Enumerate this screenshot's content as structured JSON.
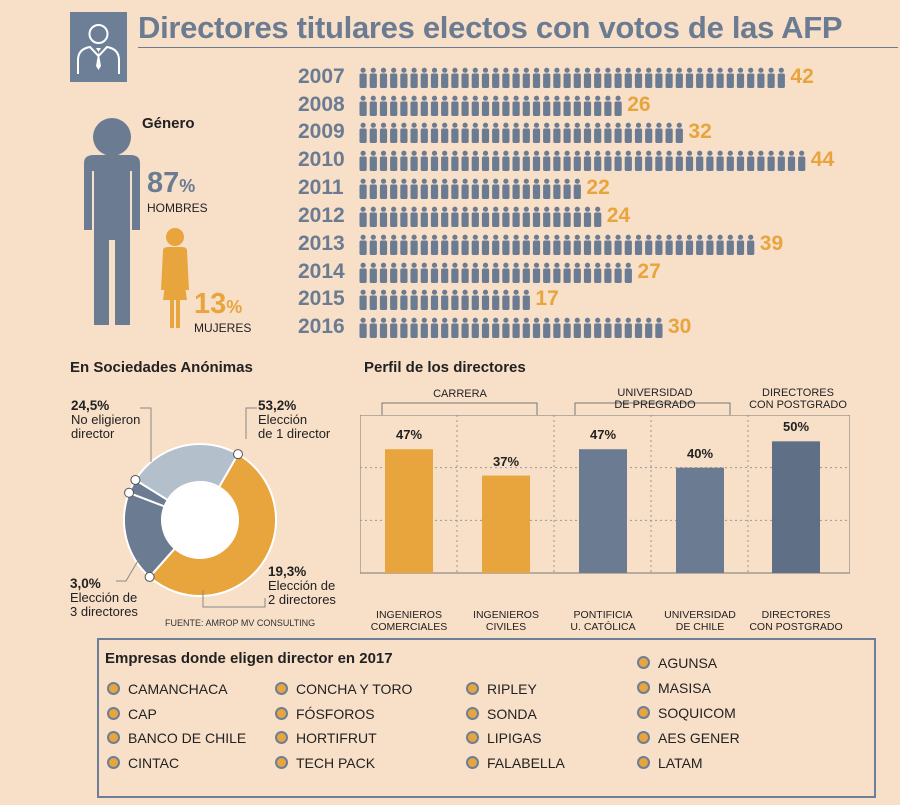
{
  "title": "Directores titulares electos con votos de las AFP",
  "colors": {
    "slate": "#6a7b92",
    "orange": "#e8a43d",
    "light_slate": "#b4bfcc",
    "dark_slate": "#5e6f86",
    "bg": "#f8dfc8"
  },
  "gender": {
    "title": "Género",
    "men_pct": "87",
    "men_label": "HOMBRES",
    "women_pct": "13",
    "women_label": "MUJERES",
    "pct_sign": "%"
  },
  "chart_data": [
    {
      "type": "bar",
      "title": "Directores titulares electos con votos de las AFP",
      "orientation": "horizontal pictogram",
      "categories": [
        "2007",
        "2008",
        "2009",
        "2010",
        "2011",
        "2012",
        "2013",
        "2014",
        "2015",
        "2016"
      ],
      "values": [
        42,
        26,
        32,
        44,
        22,
        24,
        39,
        27,
        17,
        30
      ]
    },
    {
      "type": "pie",
      "title": "En Sociedades Anónimas",
      "slices": [
        {
          "pct": "53,2%",
          "value": 53.2,
          "label_line1": "Elección",
          "label_line2": "de 1 director"
        },
        {
          "pct": "19,3%",
          "value": 19.3,
          "label_line1": "Elección de",
          "label_line2": "2 directores"
        },
        {
          "pct": "3,0%",
          "value": 3.0,
          "label_line1": "Elección de",
          "label_line2": "3 directores"
        },
        {
          "pct": "24,5%",
          "value": 24.5,
          "label_line1": "No eligieron",
          "label_line2": "director"
        }
      ],
      "source": "FUENTE: AMROP MV CONSULTING"
    },
    {
      "type": "bar",
      "title": "Perfil de los directores",
      "groups": [
        {
          "label": "CARRERA"
        },
        {
          "label_line1": "UNIVERSIDAD",
          "label_line2": "DE PREGRADO"
        },
        {
          "label_line1": "DIRECTORES",
          "label_line2": "CON POSTGRADO"
        }
      ],
      "categories": [
        {
          "line1": "INGENIEROS",
          "line2": "COMERCIALES"
        },
        {
          "line1": "INGENIEROS",
          "line2": "CIVILES"
        },
        {
          "line1": "PONTIFICIA",
          "line2": "U. CATÓLICA"
        },
        {
          "line1": "UNIVERSIDAD",
          "line2": "DE CHILE"
        },
        {
          "line1": "DIRECTORES",
          "line2": "CON POSTGRADO"
        }
      ],
      "values": [
        47,
        37,
        47,
        40,
        50
      ],
      "value_labels": [
        "47%",
        "37%",
        "47%",
        "40%",
        "50%"
      ],
      "ylim": [
        0,
        60
      ]
    }
  ],
  "companies": {
    "title": "Empresas donde eligen director en 2017",
    "col1": [
      "CAMANCHACA",
      "CAP",
      "BANCO DE CHILE",
      "CINTAC"
    ],
    "col2": [
      "CONCHA Y TORO",
      "FÓSFOROS",
      "HORTIFRUT",
      "TECH PACK"
    ],
    "col3": [
      "RIPLEY",
      "SONDA",
      "LIPIGAS",
      "FALABELLA"
    ],
    "col4": [
      "AGUNSA",
      "MASISA",
      "SOQUICOM",
      "AES GENER",
      "LATAM"
    ]
  }
}
